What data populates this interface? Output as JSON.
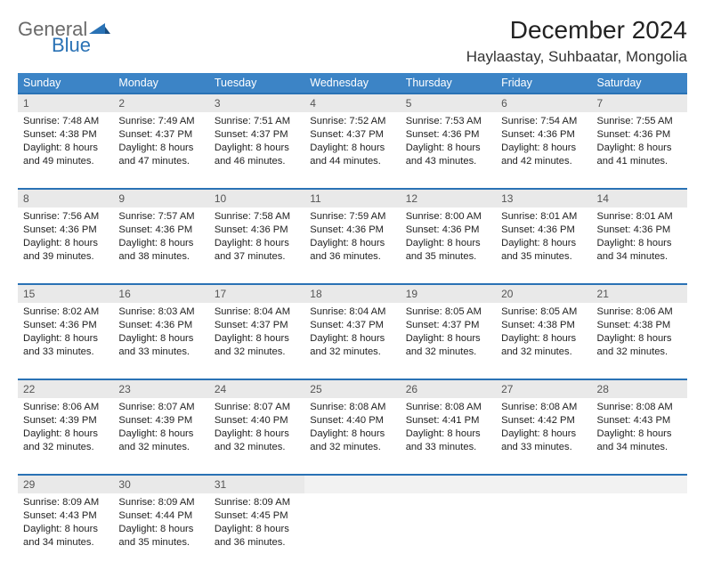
{
  "logo": {
    "word1": "General",
    "word2": "Blue"
  },
  "title": "December 2024",
  "location": "Haylaastay, Suhbaatar, Mongolia",
  "colors": {
    "header_bg": "#3c84c6",
    "header_text": "#ffffff",
    "row_border": "#2a72b5",
    "daynum_bg": "#e9e9e9",
    "daynum_empty_bg": "#f2f2f2",
    "logo_gray": "#6a6a6a",
    "logo_blue": "#2a72b5",
    "text": "#222222"
  },
  "weekdays": [
    "Sunday",
    "Monday",
    "Tuesday",
    "Wednesday",
    "Thursday",
    "Friday",
    "Saturday"
  ],
  "weeks": [
    [
      {
        "num": "1",
        "sunrise": "Sunrise: 7:48 AM",
        "sunset": "Sunset: 4:38 PM",
        "day1": "Daylight: 8 hours",
        "day2": "and 49 minutes."
      },
      {
        "num": "2",
        "sunrise": "Sunrise: 7:49 AM",
        "sunset": "Sunset: 4:37 PM",
        "day1": "Daylight: 8 hours",
        "day2": "and 47 minutes."
      },
      {
        "num": "3",
        "sunrise": "Sunrise: 7:51 AM",
        "sunset": "Sunset: 4:37 PM",
        "day1": "Daylight: 8 hours",
        "day2": "and 46 minutes."
      },
      {
        "num": "4",
        "sunrise": "Sunrise: 7:52 AM",
        "sunset": "Sunset: 4:37 PM",
        "day1": "Daylight: 8 hours",
        "day2": "and 44 minutes."
      },
      {
        "num": "5",
        "sunrise": "Sunrise: 7:53 AM",
        "sunset": "Sunset: 4:36 PM",
        "day1": "Daylight: 8 hours",
        "day2": "and 43 minutes."
      },
      {
        "num": "6",
        "sunrise": "Sunrise: 7:54 AM",
        "sunset": "Sunset: 4:36 PM",
        "day1": "Daylight: 8 hours",
        "day2": "and 42 minutes."
      },
      {
        "num": "7",
        "sunrise": "Sunrise: 7:55 AM",
        "sunset": "Sunset: 4:36 PM",
        "day1": "Daylight: 8 hours",
        "day2": "and 41 minutes."
      }
    ],
    [
      {
        "num": "8",
        "sunrise": "Sunrise: 7:56 AM",
        "sunset": "Sunset: 4:36 PM",
        "day1": "Daylight: 8 hours",
        "day2": "and 39 minutes."
      },
      {
        "num": "9",
        "sunrise": "Sunrise: 7:57 AM",
        "sunset": "Sunset: 4:36 PM",
        "day1": "Daylight: 8 hours",
        "day2": "and 38 minutes."
      },
      {
        "num": "10",
        "sunrise": "Sunrise: 7:58 AM",
        "sunset": "Sunset: 4:36 PM",
        "day1": "Daylight: 8 hours",
        "day2": "and 37 minutes."
      },
      {
        "num": "11",
        "sunrise": "Sunrise: 7:59 AM",
        "sunset": "Sunset: 4:36 PM",
        "day1": "Daylight: 8 hours",
        "day2": "and 36 minutes."
      },
      {
        "num": "12",
        "sunrise": "Sunrise: 8:00 AM",
        "sunset": "Sunset: 4:36 PM",
        "day1": "Daylight: 8 hours",
        "day2": "and 35 minutes."
      },
      {
        "num": "13",
        "sunrise": "Sunrise: 8:01 AM",
        "sunset": "Sunset: 4:36 PM",
        "day1": "Daylight: 8 hours",
        "day2": "and 35 minutes."
      },
      {
        "num": "14",
        "sunrise": "Sunrise: 8:01 AM",
        "sunset": "Sunset: 4:36 PM",
        "day1": "Daylight: 8 hours",
        "day2": "and 34 minutes."
      }
    ],
    [
      {
        "num": "15",
        "sunrise": "Sunrise: 8:02 AM",
        "sunset": "Sunset: 4:36 PM",
        "day1": "Daylight: 8 hours",
        "day2": "and 33 minutes."
      },
      {
        "num": "16",
        "sunrise": "Sunrise: 8:03 AM",
        "sunset": "Sunset: 4:36 PM",
        "day1": "Daylight: 8 hours",
        "day2": "and 33 minutes."
      },
      {
        "num": "17",
        "sunrise": "Sunrise: 8:04 AM",
        "sunset": "Sunset: 4:37 PM",
        "day1": "Daylight: 8 hours",
        "day2": "and 32 minutes."
      },
      {
        "num": "18",
        "sunrise": "Sunrise: 8:04 AM",
        "sunset": "Sunset: 4:37 PM",
        "day1": "Daylight: 8 hours",
        "day2": "and 32 minutes."
      },
      {
        "num": "19",
        "sunrise": "Sunrise: 8:05 AM",
        "sunset": "Sunset: 4:37 PM",
        "day1": "Daylight: 8 hours",
        "day2": "and 32 minutes."
      },
      {
        "num": "20",
        "sunrise": "Sunrise: 8:05 AM",
        "sunset": "Sunset: 4:38 PM",
        "day1": "Daylight: 8 hours",
        "day2": "and 32 minutes."
      },
      {
        "num": "21",
        "sunrise": "Sunrise: 8:06 AM",
        "sunset": "Sunset: 4:38 PM",
        "day1": "Daylight: 8 hours",
        "day2": "and 32 minutes."
      }
    ],
    [
      {
        "num": "22",
        "sunrise": "Sunrise: 8:06 AM",
        "sunset": "Sunset: 4:39 PM",
        "day1": "Daylight: 8 hours",
        "day2": "and 32 minutes."
      },
      {
        "num": "23",
        "sunrise": "Sunrise: 8:07 AM",
        "sunset": "Sunset: 4:39 PM",
        "day1": "Daylight: 8 hours",
        "day2": "and 32 minutes."
      },
      {
        "num": "24",
        "sunrise": "Sunrise: 8:07 AM",
        "sunset": "Sunset: 4:40 PM",
        "day1": "Daylight: 8 hours",
        "day2": "and 32 minutes."
      },
      {
        "num": "25",
        "sunrise": "Sunrise: 8:08 AM",
        "sunset": "Sunset: 4:40 PM",
        "day1": "Daylight: 8 hours",
        "day2": "and 32 minutes."
      },
      {
        "num": "26",
        "sunrise": "Sunrise: 8:08 AM",
        "sunset": "Sunset: 4:41 PM",
        "day1": "Daylight: 8 hours",
        "day2": "and 33 minutes."
      },
      {
        "num": "27",
        "sunrise": "Sunrise: 8:08 AM",
        "sunset": "Sunset: 4:42 PM",
        "day1": "Daylight: 8 hours",
        "day2": "and 33 minutes."
      },
      {
        "num": "28",
        "sunrise": "Sunrise: 8:08 AM",
        "sunset": "Sunset: 4:43 PM",
        "day1": "Daylight: 8 hours",
        "day2": "and 34 minutes."
      }
    ],
    [
      {
        "num": "29",
        "sunrise": "Sunrise: 8:09 AM",
        "sunset": "Sunset: 4:43 PM",
        "day1": "Daylight: 8 hours",
        "day2": "and 34 minutes."
      },
      {
        "num": "30",
        "sunrise": "Sunrise: 8:09 AM",
        "sunset": "Sunset: 4:44 PM",
        "day1": "Daylight: 8 hours",
        "day2": "and 35 minutes."
      },
      {
        "num": "31",
        "sunrise": "Sunrise: 8:09 AM",
        "sunset": "Sunset: 4:45 PM",
        "day1": "Daylight: 8 hours",
        "day2": "and 36 minutes."
      },
      {
        "empty": true
      },
      {
        "empty": true
      },
      {
        "empty": true
      },
      {
        "empty": true
      }
    ]
  ]
}
